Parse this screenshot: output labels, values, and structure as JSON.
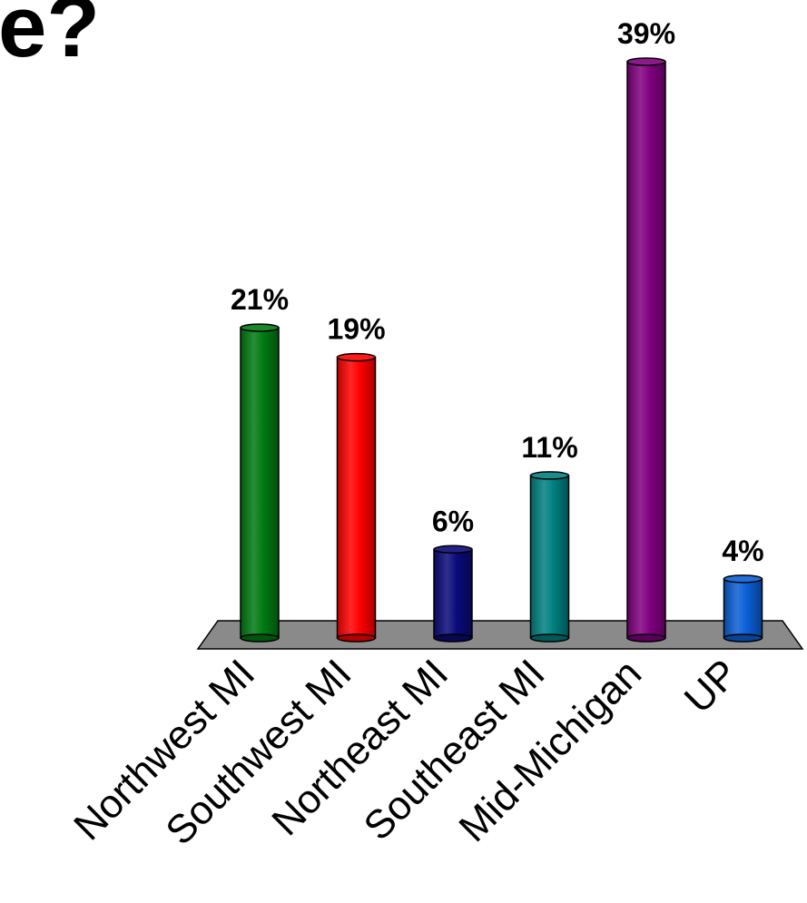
{
  "title": "e?",
  "chart_data": {
    "type": "bar",
    "title": "e?",
    "xlabel": "",
    "ylabel": "",
    "categories": [
      "Northwest MI",
      "Southwest MI",
      "Northeast MI",
      "Southeast MI",
      "Mid-Michigan",
      "UP"
    ],
    "values": [
      21,
      19,
      6,
      11,
      39,
      4
    ],
    "data_labels": [
      "21%",
      "19%",
      "6%",
      "11%",
      "39%",
      "4%"
    ],
    "colors": [
      "#007A12",
      "#FF0000",
      "#0A0A7A",
      "#008080",
      "#800080",
      "#0A5FD6"
    ],
    "floor_color": "#8A8A8A",
    "ylim": [
      0,
      39
    ],
    "grid": false,
    "legend": "none"
  }
}
